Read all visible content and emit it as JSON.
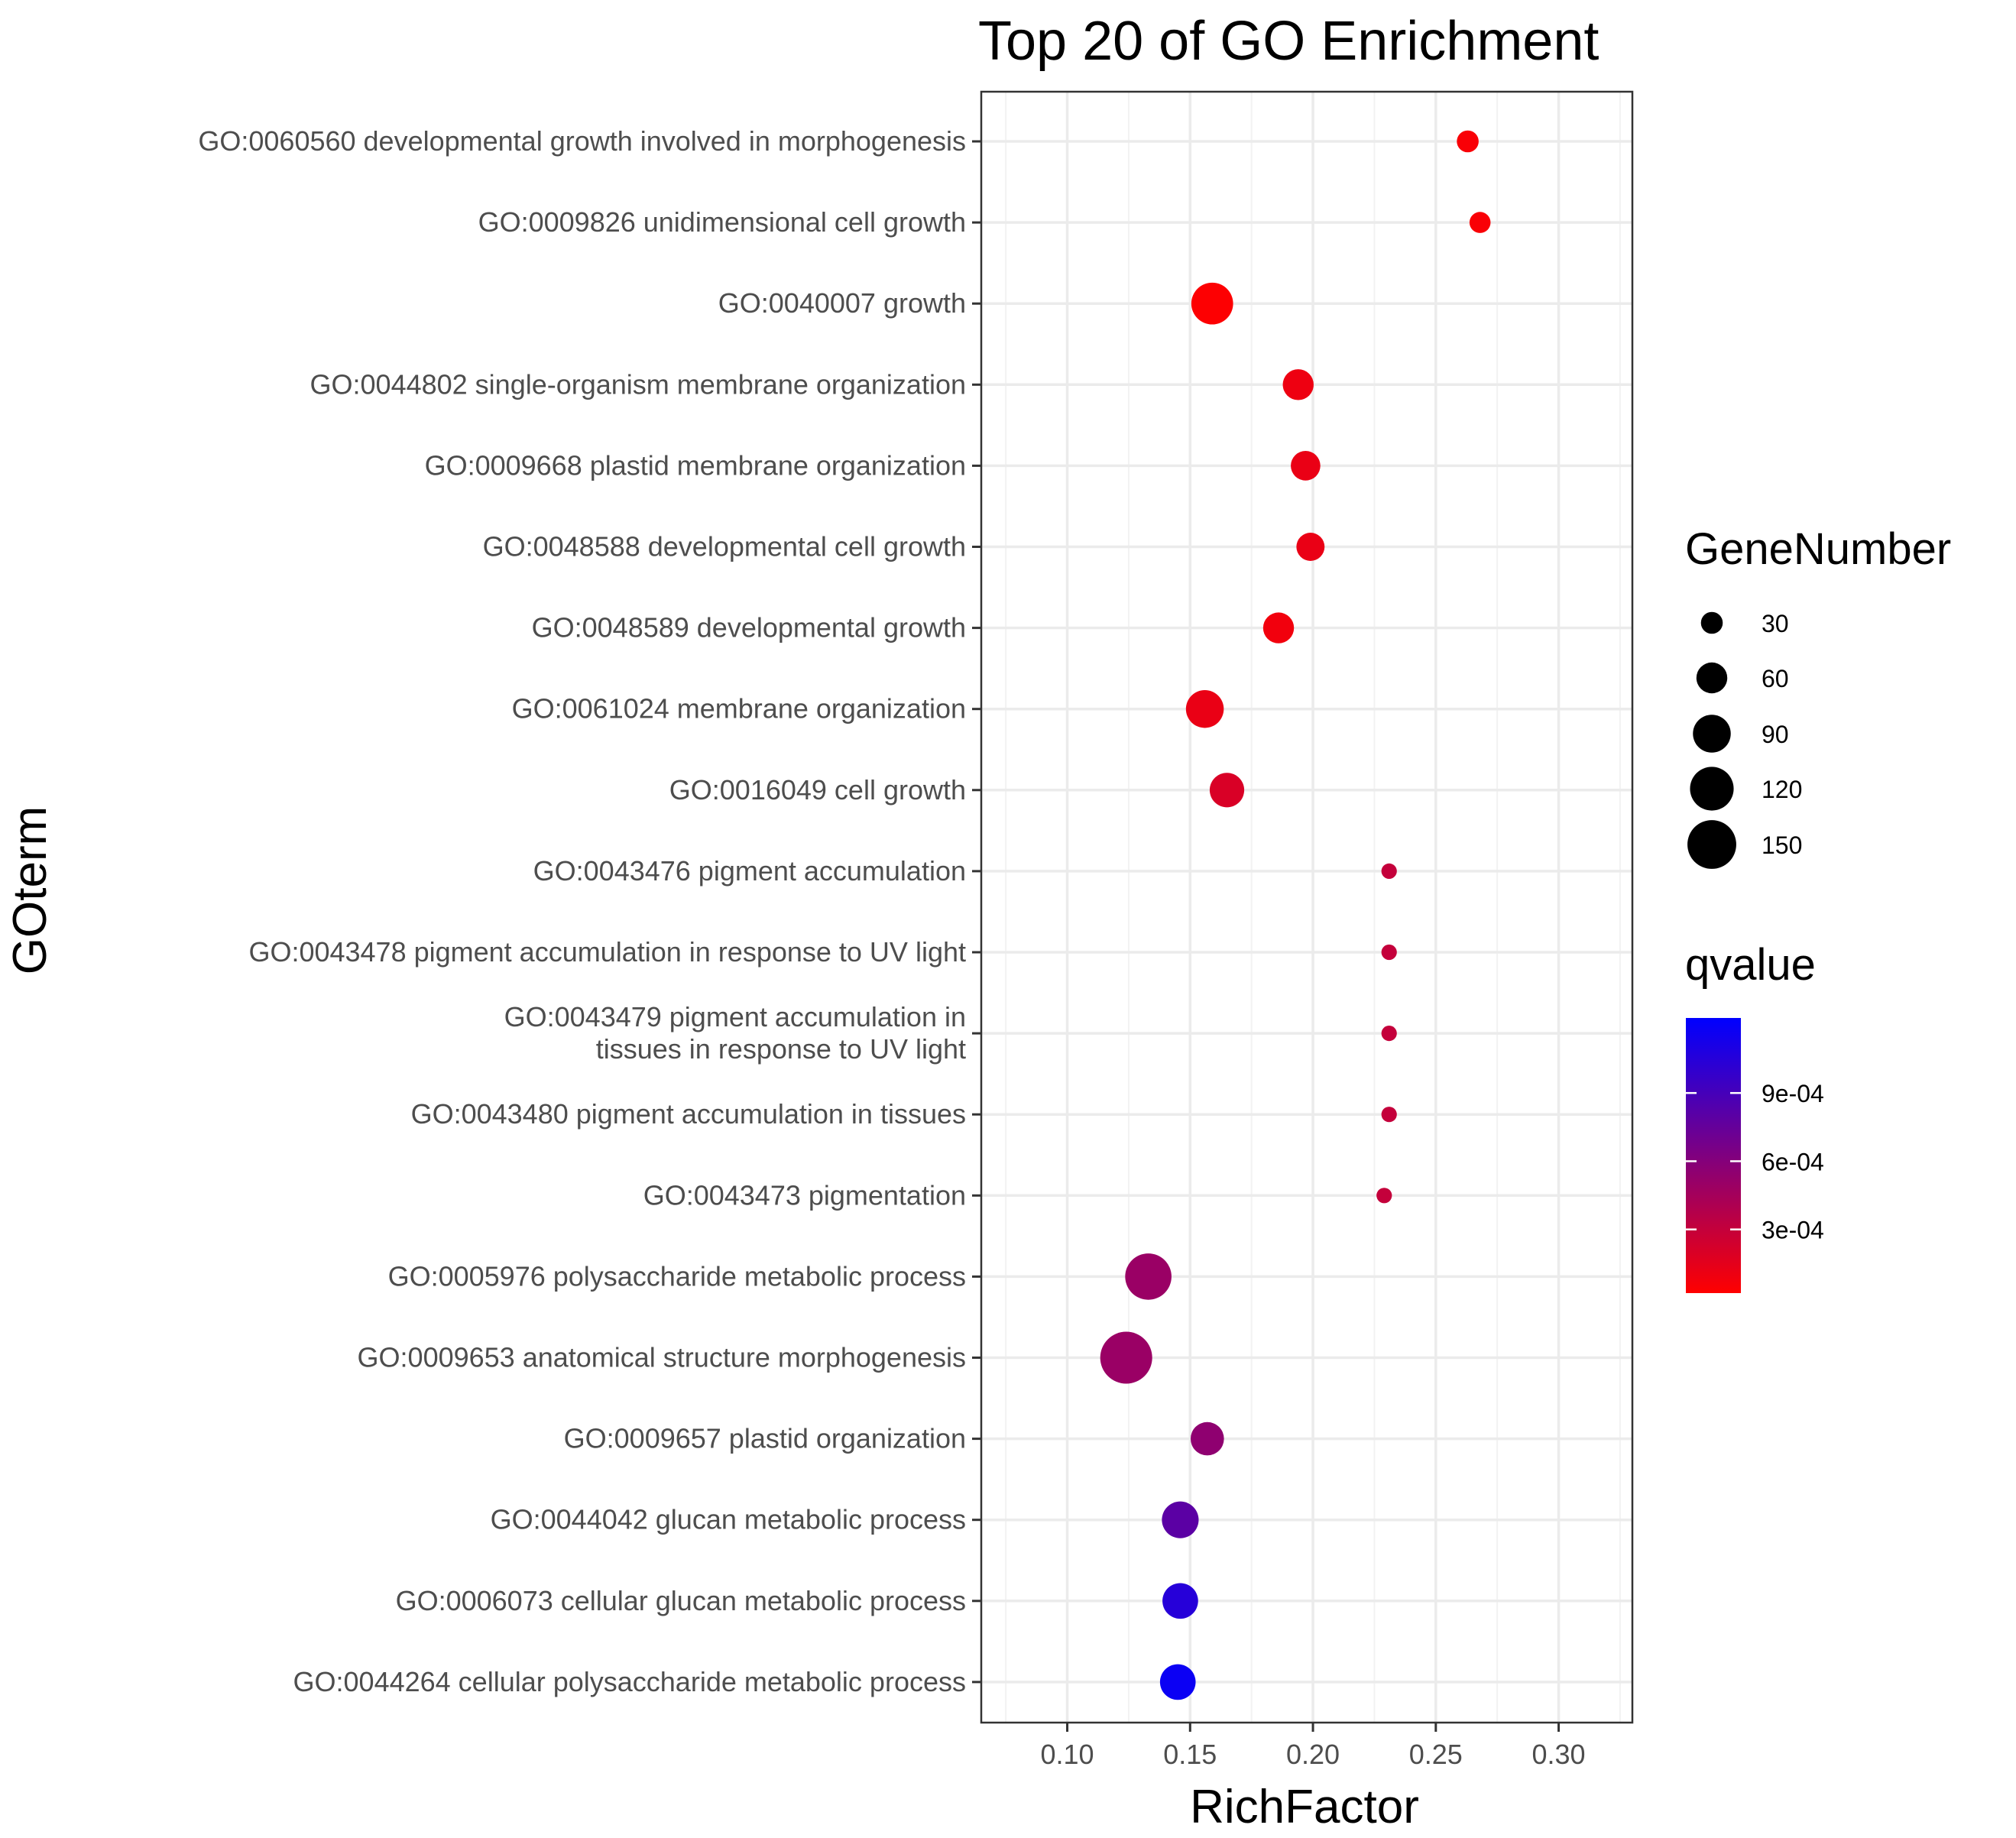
{
  "chart_data": {
    "type": "scatter",
    "title": "Top 20 of GO Enrichment",
    "xlabel": "RichFactor",
    "ylabel": "GOterm",
    "xlim": [
      0.065,
      0.33
    ],
    "xticks": [
      "0.10",
      "0.15",
      "0.20",
      "0.25",
      "0.30"
    ],
    "xtick_values": [
      0.1,
      0.15,
      0.2,
      0.25,
      0.3
    ],
    "grid": true,
    "points": [
      {
        "term": "GO:0060560 developmental growth involved in morphogenesis",
        "x": 0.263,
        "gene_number": 30,
        "qvalue": 5e-05
      },
      {
        "term": "GO:0009826 unidimensional cell growth",
        "x": 0.268,
        "gene_number": 28,
        "qvalue": 5e-05
      },
      {
        "term": "GO:0040007 growth",
        "x": 0.159,
        "gene_number": 110,
        "qvalue": 3e-05
      },
      {
        "term": "GO:0044802 single-organism membrane organization",
        "x": 0.194,
        "gene_number": 60,
        "qvalue": 0.0001
      },
      {
        "term": "GO:0009668 plastid membrane organization",
        "x": 0.197,
        "gene_number": 55,
        "qvalue": 0.00012
      },
      {
        "term": "GO:0048588 developmental cell growth",
        "x": 0.199,
        "gene_number": 50,
        "qvalue": 0.00012
      },
      {
        "term": "GO:0048589 developmental growth",
        "x": 0.186,
        "gene_number": 60,
        "qvalue": 8e-05
      },
      {
        "term": "GO:0061024 membrane organization",
        "x": 0.156,
        "gene_number": 90,
        "qvalue": 0.00012
      },
      {
        "term": "GO:0016049 cell growth",
        "x": 0.165,
        "gene_number": 75,
        "qvalue": 0.0002
      },
      {
        "term": "GO:0043476 pigment accumulation",
        "x": 0.231,
        "gene_number": 15,
        "qvalue": 0.0003
      },
      {
        "term": "GO:0043478 pigment accumulation in response to UV light",
        "x": 0.231,
        "gene_number": 15,
        "qvalue": 0.0003
      },
      {
        "term": "GO:0043479 pigment accumulation in\ntissues in response to UV light",
        "x": 0.231,
        "gene_number": 15,
        "qvalue": 0.0003
      },
      {
        "term": "GO:0043480 pigment accumulation in tissues",
        "x": 0.231,
        "gene_number": 15,
        "qvalue": 0.0003
      },
      {
        "term": "GO:0043473 pigmentation",
        "x": 0.229,
        "gene_number": 15,
        "qvalue": 0.0003
      },
      {
        "term": "GO:0005976 polysaccharide metabolic process",
        "x": 0.133,
        "gene_number": 135,
        "qvalue": 0.0005
      },
      {
        "term": "GO:0009653 anatomical structure morphogenesis",
        "x": 0.124,
        "gene_number": 170,
        "qvalue": 0.0005
      },
      {
        "term": "GO:0009657 plastid organization",
        "x": 0.157,
        "gene_number": 70,
        "qvalue": 0.00055
      },
      {
        "term": "GO:0044042 glucan metabolic process",
        "x": 0.146,
        "gene_number": 85,
        "qvalue": 0.0008
      },
      {
        "term": "GO:0006073 cellular glucan metabolic process",
        "x": 0.146,
        "gene_number": 80,
        "qvalue": 0.00105
      },
      {
        "term": "GO:0044264 cellular polysaccharide metabolic process",
        "x": 0.145,
        "gene_number": 80,
        "qvalue": 0.00118
      }
    ],
    "legend_size": {
      "title": "GeneNumber",
      "labels": [
        "30",
        "60",
        "90",
        "120",
        "150"
      ],
      "values": [
        30,
        60,
        90,
        120,
        150
      ]
    },
    "legend_color": {
      "title": "qvalue",
      "low_color": "#ff0000",
      "high_color": "#0000ff",
      "range": [
        2e-05,
        0.00123
      ],
      "labels": [
        "9e-04",
        "6e-04",
        "3e-04"
      ],
      "values": [
        0.0009,
        0.0006,
        0.0003
      ]
    }
  }
}
